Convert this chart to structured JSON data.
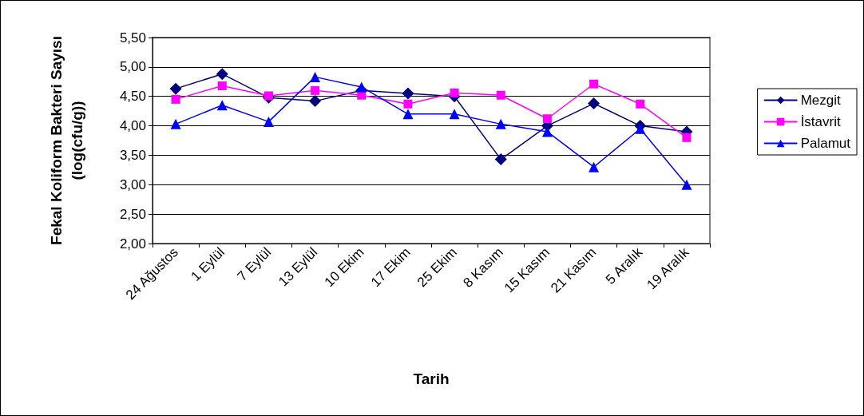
{
  "chart_data": {
    "type": "line",
    "xlabel": "Tarih",
    "ylabel": "Fekal Koliform Bakteri Sayısı\n(log(cfu/g))",
    "categories": [
      "24 Ağustos",
      "1 Eylül",
      "7 Eylül",
      "13 Eylül",
      "10 Ekim",
      "17 Ekim",
      "25 Ekim",
      "8 Kasım",
      "15 Kasım",
      "21 Kasım",
      "5 Aralık",
      "19 Aralık"
    ],
    "series": [
      {
        "name": "Mezgit",
        "color": "#000080",
        "marker": "diamond",
        "values": [
          4.63,
          4.88,
          4.48,
          4.42,
          4.6,
          4.55,
          4.5,
          3.43,
          4.0,
          4.38,
          4.0,
          3.9
        ]
      },
      {
        "name": "İstavrit",
        "color": "#ff00ff",
        "marker": "square",
        "values": [
          4.45,
          4.68,
          4.51,
          4.6,
          4.52,
          4.37,
          4.56,
          4.52,
          4.12,
          4.71,
          4.37,
          3.8
        ]
      },
      {
        "name": "Palamut",
        "color": "#0000ff",
        "marker": "triangle",
        "values": [
          4.03,
          4.35,
          4.07,
          4.83,
          4.66,
          4.2,
          4.2,
          4.03,
          3.9,
          3.3,
          3.95,
          3.0
        ]
      }
    ],
    "ylim": [
      2,
      5.5
    ],
    "yticks": [
      {
        "value": 2,
        "label": "2,00"
      },
      {
        "value": 2.5,
        "label": "2,50"
      },
      {
        "value": 3,
        "label": "3,00"
      },
      {
        "value": 3.5,
        "label": "3,50"
      },
      {
        "value": 4,
        "label": "4,00"
      },
      {
        "value": 4.5,
        "label": "4,50"
      },
      {
        "value": 5,
        "label": "5,00"
      },
      {
        "value": 5.5,
        "label": "5,50"
      }
    ],
    "grid": "y",
    "legend": "right",
    "line_style": "solid"
  }
}
